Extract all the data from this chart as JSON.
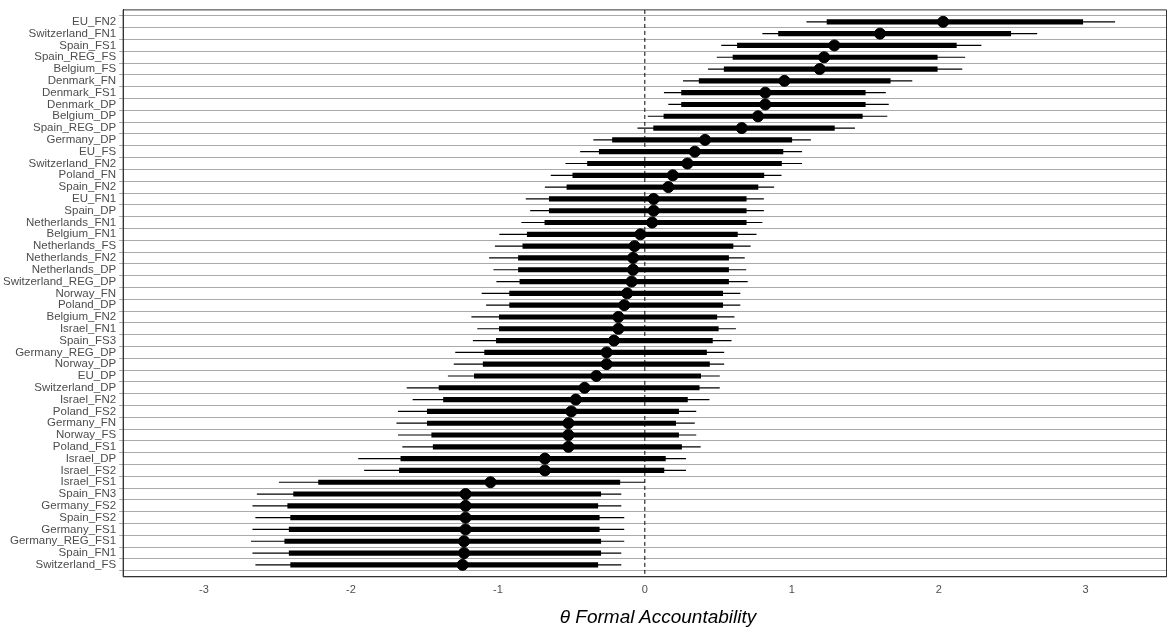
{
  "chart_data": {
    "type": "scatter",
    "orientation": "horizontal",
    "xlabel": "θ Formal Accountability",
    "grid": "y",
    "xlim": [
      -3.55,
      3.55
    ],
    "xticks": [
      -3,
      -2,
      -1,
      0,
      1,
      2,
      3
    ],
    "ref_lines": [
      {
        "axis": "x",
        "value": 0,
        "line_style": "dashed",
        "color": "#000000"
      }
    ],
    "categories": [
      "EU_FN2",
      "Switzerland_FN1",
      "Spain_FS1",
      "Spain_REG_FS",
      "Belgium_FS",
      "Denmark_FN",
      "Denmark_FS1",
      "Denmark_DP",
      "Belgium_DP",
      "Spain_REG_DP",
      "Germany_DP",
      "EU_FS",
      "Switzerland_FN2",
      "Poland_FN",
      "Spain_FN2",
      "EU_FN1",
      "Spain_DP",
      "Netherlands_FN1",
      "Belgium_FN1",
      "Netherlands_FS",
      "Netherlands_FN2",
      "Netherlands_DP",
      "Switzerland_REG_DP",
      "Norway_FN",
      "Poland_DP",
      "Belgium_FN2",
      "Israel_FN1",
      "Spain_FS3",
      "Germany_REG_DP",
      "Norway_DP",
      "EU_DP",
      "Switzerland_DP",
      "Israel_FN2",
      "Poland_FS2",
      "Germany_FN",
      "Norway_FS",
      "Poland_FS1",
      "Israel_DP",
      "Israel_FS2",
      "Israel_FS1",
      "Spain_FN3",
      "Germany_FS2",
      "Spain_FS2",
      "Germany_FS1",
      "Germany_REG_FS1",
      "Spain_FN1",
      "Switzerland_FS"
    ],
    "series": [
      {
        "type": "bar",
        "color": "#000000",
        "base": [
          1.24,
          0.91,
          0.63,
          0.6,
          0.54,
          0.37,
          0.25,
          0.25,
          0.13,
          0.06,
          -0.22,
          -0.31,
          -0.39,
          -0.49,
          -0.53,
          -0.65,
          -0.65,
          -0.68,
          -0.8,
          -0.83,
          -0.86,
          -0.86,
          -0.85,
          -0.92,
          -0.92,
          -0.99,
          -0.99,
          -1.01,
          -1.09,
          -1.1,
          -1.16,
          -1.4,
          -1.37,
          -1.48,
          -1.48,
          -1.45,
          -1.44,
          -1.66,
          -1.67,
          -2.22,
          -2.39,
          -2.43,
          -2.41,
          -2.42,
          -2.45,
          -2.42,
          -2.41
        ],
        "values": [
          1.74,
          1.58,
          1.49,
          1.39,
          1.45,
          1.3,
          1.25,
          1.25,
          1.35,
          1.23,
          1.22,
          1.25,
          1.32,
          1.3,
          1.3,
          1.34,
          1.34,
          1.37,
          1.43,
          1.43,
          1.43,
          1.43,
          1.42,
          1.45,
          1.45,
          1.48,
          1.49,
          1.47,
          1.51,
          1.54,
          1.54,
          1.77,
          1.66,
          1.71,
          1.69,
          1.68,
          1.69,
          1.8,
          1.8,
          2.05,
          2.09,
          2.11,
          2.1,
          2.11,
          2.15,
          2.12,
          2.09
        ]
      },
      {
        "color": "#000000",
        "marker": "circle",
        "values": [
          2.03,
          1.6,
          1.29,
          1.22,
          1.19,
          0.95,
          0.82,
          0.82,
          0.77,
          0.66,
          0.41,
          0.34,
          0.29,
          0.19,
          0.16,
          0.06,
          0.06,
          0.05,
          -0.03,
          -0.07,
          -0.08,
          -0.08,
          -0.09,
          -0.12,
          -0.14,
          -0.18,
          -0.18,
          -0.21,
          -0.26,
          -0.26,
          -0.33,
          -0.41,
          -0.47,
          -0.5,
          -0.52,
          -0.52,
          -0.52,
          -0.68,
          -0.68,
          -1.05,
          -1.22,
          -1.22,
          -1.22,
          -1.22,
          -1.23,
          -1.23,
          -1.24
        ],
        "errors": [
          [
            1.1,
            3.2
          ],
          [
            0.8,
            2.67
          ],
          [
            0.52,
            2.29
          ],
          [
            0.49,
            2.18
          ],
          [
            0.43,
            2.16
          ],
          [
            0.26,
            1.82
          ],
          [
            0.13,
            1.64
          ],
          [
            0.16,
            1.66
          ],
          [
            0.02,
            1.65
          ],
          [
            -0.05,
            1.43
          ],
          [
            -0.35,
            1.13
          ],
          [
            -0.44,
            1.07
          ],
          [
            -0.54,
            1.07
          ],
          [
            -0.64,
            0.93
          ],
          [
            -0.68,
            0.88
          ],
          [
            -0.81,
            0.81
          ],
          [
            -0.78,
            0.81
          ],
          [
            -0.84,
            0.8
          ],
          [
            -0.99,
            0.76
          ],
          [
            -1.02,
            0.72
          ],
          [
            -1.06,
            0.68
          ],
          [
            -1.03,
            0.69
          ],
          [
            -1.01,
            0.7
          ],
          [
            -1.11,
            0.65
          ],
          [
            -1.08,
            0.65
          ],
          [
            -1.18,
            0.61
          ],
          [
            -1.14,
            0.62
          ],
          [
            -1.17,
            0.59
          ],
          [
            -1.29,
            0.54
          ],
          [
            -1.3,
            0.54
          ],
          [
            -1.34,
            0.51
          ],
          [
            -1.62,
            0.51
          ],
          [
            -1.58,
            0.44
          ],
          [
            -1.68,
            0.35
          ],
          [
            -1.69,
            0.34
          ],
          [
            -1.68,
            0.35
          ],
          [
            -1.65,
            0.38
          ],
          [
            -1.95,
            0.28
          ],
          [
            -1.91,
            0.28
          ],
          [
            -2.49,
            0.0
          ],
          [
            -2.64,
            -0.16
          ],
          [
            -2.67,
            -0.16
          ],
          [
            -2.65,
            -0.14
          ],
          [
            -2.67,
            -0.14
          ],
          [
            -2.68,
            -0.14
          ],
          [
            -2.67,
            -0.16
          ],
          [
            -2.65,
            -0.16
          ]
        ]
      }
    ]
  }
}
